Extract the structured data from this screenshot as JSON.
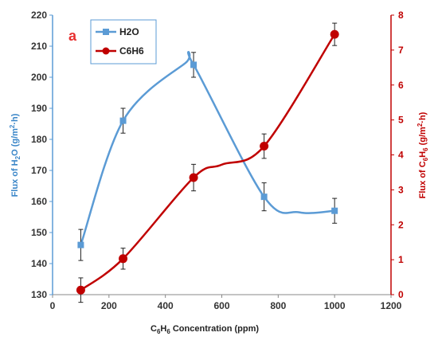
{
  "chart_data": {
    "type": "line",
    "panel_label": "a",
    "x": [
      100,
      250,
      500,
      750,
      1000
    ],
    "xlabel": {
      "c": "C",
      "sub": "6",
      "h": "H",
      "sub2": "6",
      "rest": " Concentration (ppm)"
    },
    "xlim": [
      0,
      1200
    ],
    "xticks": [
      0,
      200,
      400,
      600,
      800,
      1000,
      1200
    ],
    "ylabel_left": {
      "pre": "Flux of H",
      "sub": "2",
      "post": "O (g/m",
      "sup": "2",
      "end": "·h)"
    },
    "ylim_left": [
      130,
      220
    ],
    "yticks_left": [
      130,
      140,
      150,
      160,
      170,
      180,
      190,
      200,
      210,
      220
    ],
    "ylabel_right": {
      "pre": "Flux of C",
      "sub": "6",
      "mid": "H",
      "sub2": "6",
      "post": " (g/m",
      "sup": "2",
      "end": "·h)"
    },
    "ylim_right": [
      0,
      8
    ],
    "yticks_right": [
      0,
      1,
      2,
      3,
      4,
      5,
      6,
      7,
      8
    ],
    "grid": false,
    "legend_position": "top-left",
    "series": [
      {
        "name": "H2O",
        "axis": "left",
        "color": "#5b9bd5",
        "marker": "square",
        "values": [
          146,
          186,
          204,
          161.5,
          157
        ],
        "errors": [
          5,
          4,
          4,
          4.5,
          4
        ],
        "curve_peak": {
          "x": 470,
          "y": 204.5
        }
      },
      {
        "name": "C6H6",
        "axis": "right",
        "color": "#c00000",
        "marker": "circle",
        "values": [
          0.13,
          1.03,
          3.35,
          4.25,
          7.45
        ],
        "errors": [
          0.35,
          0.3,
          0.38,
          0.35,
          0.32
        ]
      }
    ]
  }
}
